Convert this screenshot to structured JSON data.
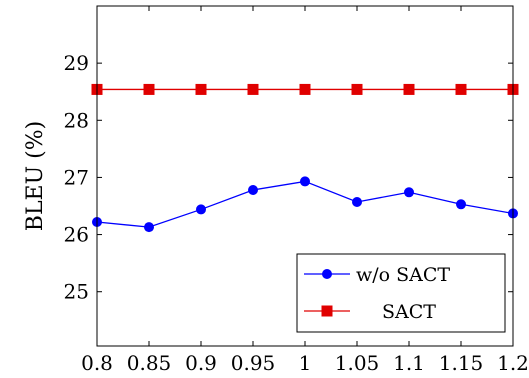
{
  "chart_data": {
    "type": "line",
    "title": "",
    "xlabel": "",
    "ylabel": "BLEU (%)",
    "x": [
      0.8,
      0.85,
      0.9,
      0.95,
      1,
      1.05,
      1.1,
      1.15,
      1.2
    ],
    "x_tick_labels": [
      "0.8",
      "0.85",
      "0.9",
      "0.95",
      "1",
      "1.05",
      "1.1",
      "1.15",
      "1.2"
    ],
    "xlim": [
      0.8,
      1.2
    ],
    "y_ticks": [
      25,
      26,
      27,
      28,
      29
    ],
    "y_tick_labels": [
      "25",
      "26",
      "27",
      "28",
      "29"
    ],
    "ylim": [
      24.05,
      30.0
    ],
    "grid": false,
    "legend_position": "bottom-right",
    "series": [
      {
        "name": "w/o SACT",
        "color": "#0000ff",
        "marker": "circle",
        "values": [
          26.22,
          26.13,
          26.44,
          26.78,
          26.93,
          26.57,
          26.74,
          26.53,
          26.37
        ]
      },
      {
        "name": "SACT",
        "color": "#e00000",
        "marker": "square",
        "values": [
          28.54,
          28.54,
          28.54,
          28.54,
          28.54,
          28.54,
          28.54,
          28.54,
          28.54
        ]
      }
    ]
  }
}
